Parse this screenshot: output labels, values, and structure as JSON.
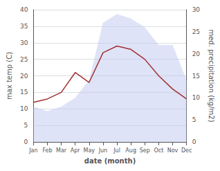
{
  "chart_data": {
    "type": "line",
    "xlabel": "date (month)",
    "ylabel": "max temp (C)",
    "y2label": "med. precipitation (kg/m2)",
    "categories": [
      "Jan",
      "Feb",
      "Mar",
      "Apr",
      "May",
      "Jun",
      "Jul",
      "Aug",
      "Sep",
      "Oct",
      "Nov",
      "Dec"
    ],
    "series": [
      {
        "name": "max temp (C)",
        "type": "line",
        "axis": "y",
        "color": "#a03030",
        "values": [
          12,
          13,
          15,
          21,
          18,
          27,
          29,
          28,
          25,
          20,
          16,
          13
        ]
      },
      {
        "name": "med. precipitation (kg/m2)",
        "type": "area",
        "axis": "y2",
        "color": "#c0c8f0",
        "values": [
          8,
          7,
          8,
          10,
          14,
          27,
          29,
          28,
          26,
          22,
          22,
          14
        ]
      }
    ],
    "ylim": [
      0,
      40
    ],
    "yticks": [
      0,
      5,
      10,
      15,
      20,
      25,
      30,
      35,
      40
    ],
    "y2lim": [
      0,
      30
    ],
    "y2ticks": [
      0,
      5,
      10,
      15,
      20,
      25,
      30
    ],
    "grid": true
  }
}
